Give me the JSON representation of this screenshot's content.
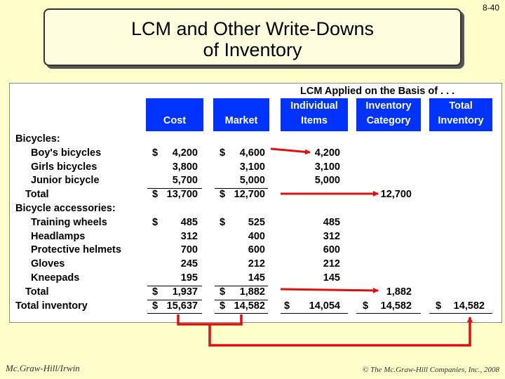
{
  "slide_number": "8-40",
  "title_line1": "LCM and Other Write-Downs",
  "title_line2": "of Inventory",
  "lcm_heading": "LCM Applied on the Basis of . . .",
  "headers": {
    "cost": "Cost",
    "market": "Market",
    "individual_1": "Individual",
    "individual_2": "Items",
    "category_1": "Inventory",
    "category_2": "Category",
    "total_1": "Total",
    "total_2": "Inventory"
  },
  "rows": [
    {
      "label": "Bicycles:",
      "indent": 0
    },
    {
      "label": "Boy's bicycles",
      "indent": 2,
      "cost_sign": "$",
      "cost": "4,200",
      "market_sign": "$",
      "market": "4,600",
      "individual": "4,200"
    },
    {
      "label": "Girls bicycles",
      "indent": 2,
      "cost": "3,800",
      "market": "3,100",
      "individual": "3,100"
    },
    {
      "label": "Junior bicycle",
      "indent": 2,
      "cost": "5,700",
      "market": "5,000",
      "individual": "5,000"
    },
    {
      "label": "Total",
      "indent": 1,
      "cost_sign": "$",
      "cost": "13,700",
      "market_sign": "$",
      "market": "12,700",
      "category": "12,700"
    },
    {
      "label": "Bicycle accessories:",
      "indent": 0
    },
    {
      "label": "Training wheels",
      "indent": 2,
      "cost_sign": "$",
      "cost": "485",
      "market_sign": "$",
      "market": "525",
      "individual": "485"
    },
    {
      "label": "Headlamps",
      "indent": 2,
      "cost": "312",
      "market": "400",
      "individual": "312"
    },
    {
      "label": "Protective helmets",
      "indent": 2,
      "cost": "700",
      "market": "600",
      "individual": "600"
    },
    {
      "label": "Gloves",
      "indent": 2,
      "cost": "245",
      "market": "212",
      "individual": "212"
    },
    {
      "label": "Kneepads",
      "indent": 2,
      "cost": "195",
      "market": "145",
      "individual": "145"
    },
    {
      "label": "Total",
      "indent": 1,
      "cost_sign": "$",
      "cost": "1,937",
      "market_sign": "$",
      "market": "1,882",
      "category": "1,882"
    },
    {
      "label": "Total inventory",
      "indent": 0,
      "cost_sign": "$",
      "cost": "15,637",
      "market_sign": "$",
      "market": "14,582",
      "individual_sign": "$",
      "individual": "14,054",
      "category_sign": "$",
      "category": "14,582",
      "total_sign": "$",
      "total": "14,582"
    }
  ],
  "footer_left": "Mc.Graw-Hill/Irwin",
  "footer_right": "© The Mc.Graw-Hill Companies, Inc., 2008",
  "colors": {
    "header_bg": "#0033ff",
    "arrow": "#dd1111",
    "slide_bg": "#ffffcc"
  }
}
